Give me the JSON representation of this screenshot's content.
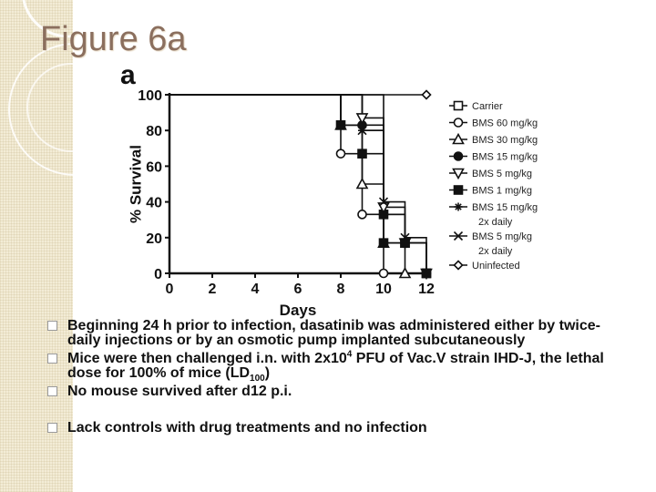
{
  "slide": {
    "title": "Figure 6a",
    "bullet_marker": "square-bullet-icon",
    "bullets": [
      {
        "text": "Beginning 24 h prior to infection, dasatinib was administered either by twice-daily injections or by an osmotic pump implanted subcutaneously"
      },
      {
        "pre": "Mice were then challenged i.n. with 2x10",
        "sup": "4",
        "mid": " PFU of Vac.V strain IHD-J, the lethal dose for 100% of mice (LD",
        "sub": "100",
        "post": ")"
      },
      {
        "text": "No mouse survived after d12 p.i."
      },
      {
        "text": "Lack controls with drug treatments and no infection"
      }
    ]
  },
  "chart_data": {
    "type": "line",
    "panel_label": "a",
    "xlabel": "Days",
    "ylabel": "% Survival",
    "xlim": [
      0,
      12
    ],
    "ylim": [
      0,
      100
    ],
    "xticks": [
      0,
      2,
      4,
      6,
      8,
      10,
      12
    ],
    "yticks": [
      0,
      20,
      40,
      60,
      80,
      100
    ],
    "xtick_labels": [
      "0",
      "2",
      "4",
      "6",
      "8",
      "10",
      "12"
    ],
    "ytick_labels": [
      "0",
      "20",
      "40",
      "60",
      "80",
      "100"
    ],
    "step": true,
    "grid": false,
    "legend_position": "right",
    "series": [
      {
        "name": "Carrier",
        "marker": "square-open",
        "x": [
          0,
          10,
          11,
          12
        ],
        "y": [
          100,
          33,
          17,
          0
        ]
      },
      {
        "name": "BMS 60 mg/kg",
        "marker": "circle-open",
        "x": [
          0,
          8,
          9,
          10
        ],
        "y": [
          100,
          67,
          33,
          0
        ]
      },
      {
        "name": "BMS 30 mg/kg",
        "marker": "triangle-up-open",
        "x": [
          0,
          8,
          9,
          10,
          11
        ],
        "y": [
          100,
          83,
          50,
          17,
          0
        ]
      },
      {
        "name": "BMS 15 mg/kg",
        "marker": "circle-filled",
        "x": [
          0,
          9,
          10,
          11,
          12
        ],
        "y": [
          100,
          83,
          33,
          17,
          0
        ]
      },
      {
        "name": "BMS 5 mg/kg",
        "marker": "triangle-down-open",
        "x": [
          0,
          9,
          10,
          11,
          12
        ],
        "y": [
          100,
          87,
          37,
          17,
          0
        ]
      },
      {
        "name": "BMS 1 mg/kg",
        "marker": "square-filled",
        "x": [
          0,
          8,
          9,
          10,
          11,
          12
        ],
        "y": [
          100,
          83,
          67,
          17,
          17,
          0
        ]
      },
      {
        "name_lines": [
          "BMS 15 mg/kg",
          "2x daily"
        ],
        "marker": "asterisk",
        "x": [
          0,
          8,
          9,
          10,
          12
        ],
        "y": [
          100,
          83,
          80,
          17,
          0
        ]
      },
      {
        "name_lines": [
          "BMS 5 mg/kg",
          "2x daily"
        ],
        "marker": "x",
        "x": [
          0,
          9,
          10,
          11,
          12
        ],
        "y": [
          100,
          80,
          40,
          20,
          0
        ]
      },
      {
        "name": "Uninfected",
        "marker": "diamond-open",
        "x": [
          0,
          12
        ],
        "y": [
          100,
          100
        ]
      }
    ]
  }
}
